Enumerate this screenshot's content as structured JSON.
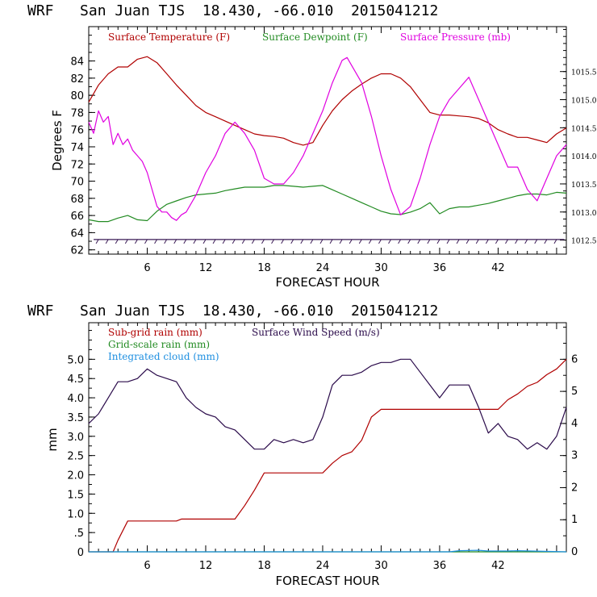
{
  "colors": {
    "temperature": "#b00000",
    "dewpoint": "#228b22",
    "pressure": "#e000e0",
    "subgrid_rain": "#b00000",
    "gridscale_rain": "#228b22",
    "cloud": "#1e8fe0",
    "wind": "#2a0a4a",
    "axis": "#000000"
  },
  "chart_data": [
    {
      "type": "line",
      "title": "WRF   San Juan TJS  18.430, -66.010  2015041212",
      "xlabel": "FORECAST HOUR",
      "ylabel": "Degrees F",
      "xlim": [
        0,
        49
      ],
      "ylim": [
        61.5,
        88
      ],
      "y2lim": [
        1012.25,
        1016.3
      ],
      "x_ticks": [
        "6",
        "12",
        "18",
        "24",
        "30",
        "36",
        "42"
      ],
      "y_ticks": [
        "62",
        "64",
        "66",
        "68",
        "70",
        "72",
        "74",
        "76",
        "78",
        "80",
        "82",
        "84"
      ],
      "y2_ticks": [
        "1012.5",
        "1013.0",
        "1013.5",
        "1014.0",
        "1014.5",
        "1015.0",
        "1015.5"
      ],
      "legend": [
        "Surface Temperature (F)",
        "Surface Dewpoint (F)",
        "Surface Pressure (mb)"
      ],
      "series": [
        {
          "name": "Surface Temperature (F)",
          "axis": "left",
          "x": [
            0,
            1,
            2,
            3,
            4,
            5,
            6,
            7,
            8,
            9,
            10,
            11,
            12,
            13,
            14,
            15,
            16,
            17,
            18,
            19,
            20,
            21,
            22,
            23,
            24,
            25,
            26,
            27,
            28,
            29,
            30,
            31,
            32,
            33,
            34,
            35,
            36,
            37,
            38,
            39,
            40,
            41,
            42,
            43,
            44,
            45,
            46,
            47,
            48,
            49
          ],
          "values": [
            79.2,
            81.2,
            82.5,
            83.3,
            83.3,
            84.2,
            84.5,
            83.8,
            82.5,
            81.2,
            80,
            78.8,
            78,
            77.5,
            77,
            76.5,
            76,
            75.5,
            75.3,
            75.2,
            75,
            74.5,
            74.2,
            74.5,
            76.5,
            78.2,
            79.5,
            80.5,
            81.3,
            82,
            82.5,
            82.5,
            82,
            81,
            79.5,
            78,
            77.7,
            77.7,
            77.6,
            77.5,
            77.3,
            76.8,
            76,
            75.5,
            75.1,
            75.1,
            74.8,
            74.5,
            75.5,
            76.2
          ]
        },
        {
          "name": "Surface Dewpoint (F)",
          "axis": "left",
          "x": [
            0,
            1,
            2,
            3,
            4,
            5,
            6,
            7,
            8,
            9,
            10,
            11,
            12,
            13,
            14,
            15,
            16,
            17,
            18,
            19,
            20,
            21,
            22,
            23,
            24,
            25,
            26,
            27,
            28,
            29,
            30,
            31,
            32,
            33,
            34,
            35,
            36,
            37,
            38,
            39,
            40,
            41,
            42,
            43,
            44,
            45,
            46,
            47,
            48,
            49
          ],
          "values": [
            65.5,
            65.3,
            65.3,
            65.7,
            66,
            65.5,
            65.4,
            66.5,
            67.3,
            67.7,
            68.1,
            68.4,
            68.5,
            68.6,
            68.9,
            69.1,
            69.3,
            69.3,
            69.3,
            69.5,
            69.5,
            69.4,
            69.3,
            69.4,
            69.5,
            69,
            68.5,
            68,
            67.5,
            67,
            66.5,
            66.2,
            66.1,
            66.4,
            66.8,
            67.5,
            66.2,
            66.8,
            67,
            67,
            67.2,
            67.4,
            67.7,
            68,
            68.3,
            68.5,
            68.5,
            68.4,
            68.7,
            68.6
          ]
        },
        {
          "name": "Surface Pressure (mb)",
          "axis": "right",
          "x": [
            0,
            0.5,
            1,
            1.5,
            2,
            2.5,
            3,
            3.5,
            4,
            4.5,
            5,
            5.5,
            6,
            6.5,
            7,
            7.5,
            8,
            8.5,
            9,
            9.5,
            10,
            11,
            12,
            13,
            14,
            15,
            16,
            17,
            18,
            19,
            20,
            21,
            22,
            23,
            24,
            25,
            26,
            26.5,
            27,
            28,
            29,
            30,
            31,
            32,
            33,
            34,
            35,
            36,
            37,
            38,
            39,
            40,
            41,
            42,
            43,
            44,
            45,
            46,
            47,
            48,
            49
          ],
          "values": [
            1014.6,
            1014.4,
            1014.8,
            1014.6,
            1014.7,
            1014.2,
            1014.4,
            1014.2,
            1014.3,
            1014.1,
            1014.0,
            1013.9,
            1013.7,
            1013.4,
            1013.1,
            1013.0,
            1013.0,
            1012.9,
            1012.85,
            1012.95,
            1013.0,
            1013.3,
            1013.7,
            1014.0,
            1014.4,
            1014.6,
            1014.4,
            1014.1,
            1013.6,
            1013.5,
            1013.5,
            1013.7,
            1014.0,
            1014.4,
            1014.8,
            1015.3,
            1015.7,
            1015.75,
            1015.6,
            1015.3,
            1014.7,
            1014.0,
            1013.4,
            1012.95,
            1013.1,
            1013.6,
            1014.2,
            1014.7,
            1015.0,
            1015.2,
            1015.4,
            1015.0,
            1014.6,
            1014.2,
            1013.8,
            1013.8,
            1013.4,
            1013.2,
            1013.6,
            1014.0,
            1014.2
          ]
        }
      ],
      "wind_barb_row_value": 63.2
    },
    {
      "type": "line",
      "title": "WRF   San Juan TJS  18.430, -66.010  2015041212",
      "xlabel": "FORECAST HOUR",
      "ylabel": "mm",
      "xlim": [
        0,
        49
      ],
      "ylim": [
        0,
        5.95
      ],
      "y2lim": [
        0,
        7.14
      ],
      "x_ticks": [
        "6",
        "12",
        "18",
        "24",
        "30",
        "36",
        "42"
      ],
      "y_ticks": [
        "0",
        ".5",
        "1.0",
        "1.5",
        "2.0",
        "2.5",
        "3.0",
        "3.5",
        "4.0",
        "4.5",
        "5.0"
      ],
      "y2_ticks": [
        "0",
        "1",
        "2",
        "3",
        "4",
        "5",
        "6"
      ],
      "legend": [
        "Sub-grid rain (mm)",
        "Grid-scale rain (mm)",
        "Integrated cloud (mm)",
        "Surface Wind Speed (m/s)"
      ],
      "series": [
        {
          "name": "Sub-grid rain (mm)",
          "axis": "left",
          "x": [
            0,
            2.5,
            3,
            4,
            9,
            9.5,
            15,
            16,
            17,
            18,
            24,
            25,
            26,
            27,
            28,
            29,
            30,
            42,
            43,
            44,
            45,
            46,
            47,
            48,
            49
          ],
          "values": [
            0,
            0,
            0.3,
            0.8,
            0.8,
            0.85,
            0.85,
            1.2,
            1.6,
            2.05,
            2.05,
            2.3,
            2.5,
            2.6,
            2.9,
            3.5,
            3.7,
            3.7,
            3.95,
            4.1,
            4.3,
            4.4,
            4.6,
            4.75,
            5.0
          ]
        },
        {
          "name": "Grid-scale rain (mm)",
          "axis": "left",
          "x": [
            0,
            49
          ],
          "values": [
            0,
            0
          ]
        },
        {
          "name": "Integrated cloud (mm)",
          "axis": "left",
          "x": [
            0,
            37,
            38,
            40,
            41,
            43,
            44,
            49
          ],
          "values": [
            0,
            0,
            0.03,
            0.04,
            0.02,
            0.02,
            0.03,
            0
          ]
        },
        {
          "name": "Surface Wind Speed (m/s)",
          "axis": "right",
          "x": [
            0,
            1,
            2,
            3,
            4,
            5,
            6,
            7,
            8,
            9,
            10,
            11,
            12,
            13,
            14,
            15,
            16,
            17,
            18,
            19,
            20,
            21,
            22,
            23,
            24,
            25,
            26,
            27,
            28,
            29,
            30,
            31,
            32,
            33,
            34,
            35,
            36,
            37,
            38,
            39,
            40,
            41,
            42,
            43,
            44,
            45,
            46,
            47,
            48,
            49
          ],
          "values": [
            4.0,
            4.3,
            4.8,
            5.3,
            5.3,
            5.4,
            5.7,
            5.5,
            5.4,
            5.3,
            4.8,
            4.5,
            4.3,
            4.2,
            3.9,
            3.8,
            3.5,
            3.2,
            3.2,
            3.5,
            3.4,
            3.5,
            3.4,
            3.5,
            4.2,
            5.2,
            5.5,
            5.5,
            5.6,
            5.8,
            5.9,
            5.9,
            6.0,
            6.0,
            5.6,
            5.2,
            4.8,
            5.2,
            5.2,
            5.2,
            4.5,
            3.7,
            4.0,
            3.6,
            3.5,
            3.2,
            3.4,
            3.2,
            3.6,
            4.5
          ]
        }
      ]
    }
  ]
}
